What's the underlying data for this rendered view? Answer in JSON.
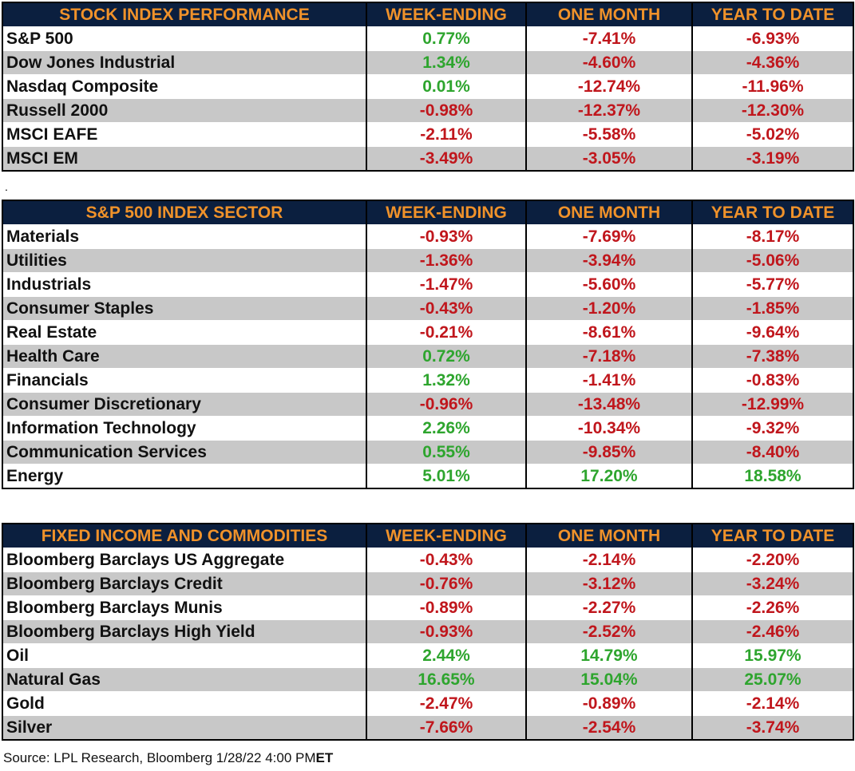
{
  "sections": [
    {
      "title": "STOCK INDEX PERFORMANCE",
      "columns": [
        "WEEK-ENDING",
        "ONE MONTH",
        "YEAR TO DATE"
      ],
      "rows": [
        {
          "name": "S&P 500",
          "values": [
            "0.77%",
            "-7.41%",
            "-6.93%"
          ]
        },
        {
          "name": "Dow Jones Industrial",
          "values": [
            "1.34%",
            "-4.60%",
            "-4.36%"
          ]
        },
        {
          "name": "Nasdaq Composite",
          "values": [
            "0.01%",
            "-12.74%",
            "-11.96%"
          ]
        },
        {
          "name": "Russell 2000",
          "values": [
            "-0.98%",
            "-12.37%",
            "-12.30%"
          ]
        },
        {
          "name": "MSCI EAFE",
          "values": [
            "-2.11%",
            "-5.58%",
            "-5.02%"
          ]
        },
        {
          "name": "MSCI EM",
          "values": [
            "-3.49%",
            "-3.05%",
            "-3.19%"
          ]
        }
      ]
    },
    {
      "title": "S&P 500 INDEX SECTOR",
      "columns": [
        "WEEK-ENDING",
        "ONE MONTH",
        "YEAR TO DATE"
      ],
      "rows": [
        {
          "name": "Materials",
          "values": [
            "-0.93%",
            "-7.69%",
            "-8.17%"
          ]
        },
        {
          "name": "Utilities",
          "values": [
            "-1.36%",
            "-3.94%",
            "-5.06%"
          ]
        },
        {
          "name": "Industrials",
          "values": [
            "-1.47%",
            "-5.60%",
            "-5.77%"
          ]
        },
        {
          "name": "Consumer Staples",
          "values": [
            "-0.43%",
            "-1.20%",
            "-1.85%"
          ]
        },
        {
          "name": "Real Estate",
          "values": [
            "-0.21%",
            "-8.61%",
            "-9.64%"
          ]
        },
        {
          "name": "Health Care",
          "values": [
            "0.72%",
            "-7.18%",
            "-7.38%"
          ]
        },
        {
          "name": "Financials",
          "values": [
            "1.32%",
            "-1.41%",
            "-0.83%"
          ]
        },
        {
          "name": "Consumer Discretionary",
          "values": [
            "-0.96%",
            "-13.48%",
            "-12.99%"
          ]
        },
        {
          "name": "Information Technology",
          "values": [
            "2.26%",
            "-10.34%",
            "-9.32%"
          ]
        },
        {
          "name": "Communication Services",
          "values": [
            "0.55%",
            "-9.85%",
            "-8.40%"
          ]
        },
        {
          "name": "Energy",
          "values": [
            "5.01%",
            "17.20%",
            "18.58%"
          ]
        }
      ]
    },
    {
      "title": "FIXED INCOME AND COMMODITIES",
      "columns": [
        "WEEK-ENDING",
        "ONE MONTH",
        "YEAR TO DATE"
      ],
      "rows": [
        {
          "name": "Bloomberg Barclays US Aggregate",
          "values": [
            "-0.43%",
            "-2.14%",
            "-2.20%"
          ]
        },
        {
          "name": "Bloomberg Barclays Credit",
          "values": [
            "-0.76%",
            "-3.12%",
            "-3.24%"
          ]
        },
        {
          "name": "Bloomberg Barclays Munis",
          "values": [
            "-0.89%",
            "-2.27%",
            "-2.26%"
          ]
        },
        {
          "name": "Bloomberg Barclays High Yield",
          "values": [
            "-0.93%",
            "-2.52%",
            "-2.46%"
          ]
        },
        {
          "name": "Oil",
          "values": [
            "2.44%",
            "14.79%",
            "15.97%"
          ]
        },
        {
          "name": "Natural Gas",
          "values": [
            "16.65%",
            "15.04%",
            "25.07%"
          ]
        },
        {
          "name": "Gold",
          "values": [
            "-2.47%",
            "-0.89%",
            "-2.14%"
          ]
        },
        {
          "name": "Silver",
          "values": [
            "-7.66%",
            "-2.54%",
            "-3.74%"
          ]
        }
      ]
    }
  ],
  "separator_dot": ".",
  "footer": {
    "source_text": "Source: LPL Research, Bloomberg 1/28/22 4:00 PM",
    "source_suffix": "ET"
  },
  "colors": {
    "header_bg": "#0b1f3f",
    "header_text": "#f0922a",
    "positive": "#2ea52e",
    "negative": "#c0161c",
    "alt_row": "#c8c8c8"
  }
}
